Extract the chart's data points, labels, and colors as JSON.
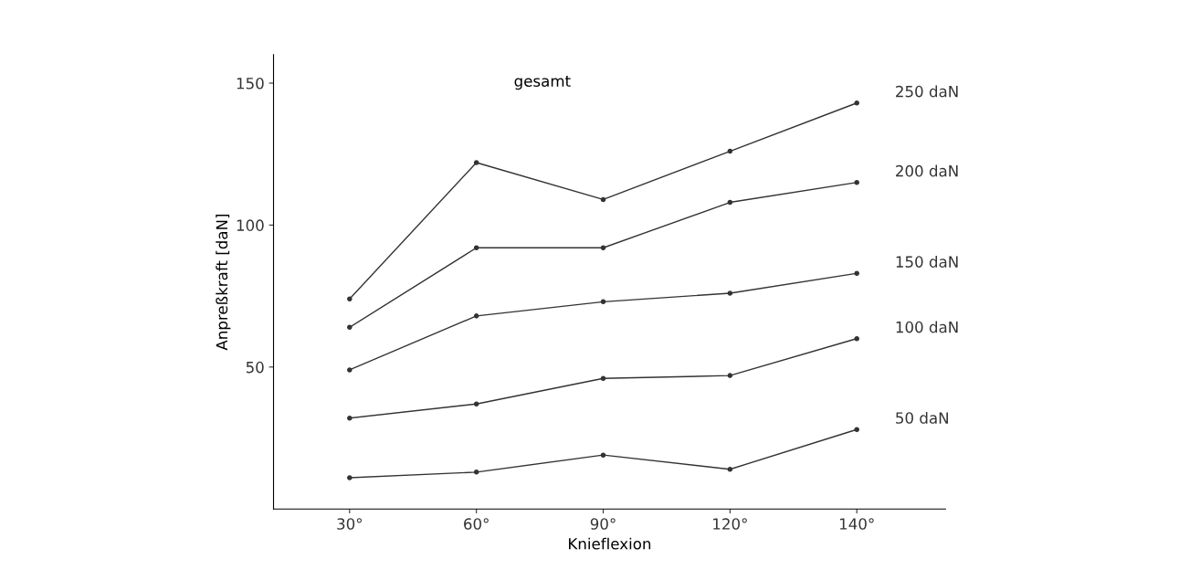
{
  "chart_data": {
    "type": "line",
    "title": "gesamt",
    "xlabel": "Knieflexion",
    "ylabel": "Anpreßkraft [daN]",
    "categories": [
      "30°",
      "60°",
      "90°",
      "120°",
      "140°"
    ],
    "series": [
      {
        "name": "250 daN",
        "color": "#333333",
        "values": [
          74,
          122,
          109,
          126,
          143
        ]
      },
      {
        "name": "200 daN",
        "color": "#333333",
        "values": [
          64,
          92,
          92,
          108,
          115
        ]
      },
      {
        "name": "150 daN",
        "color": "#333333",
        "values": [
          49,
          68,
          73,
          76,
          83
        ]
      },
      {
        "name": "100 daN",
        "color": "#333333",
        "values": [
          32,
          37,
          46,
          47,
          60
        ]
      },
      {
        "name": "50 daN",
        "color": "#333333",
        "values": [
          11,
          13,
          19,
          14,
          28
        ]
      }
    ],
    "ylim": [
      0,
      160
    ],
    "yticks": [
      50,
      100,
      150
    ],
    "grid": false,
    "legend": false,
    "marker": "circle",
    "line_style": "solid"
  }
}
